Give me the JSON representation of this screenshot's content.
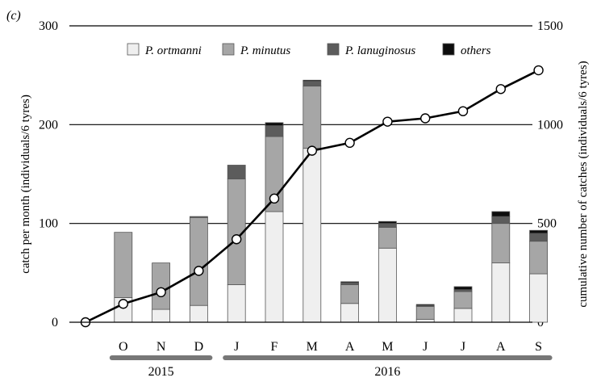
{
  "chart_data": {
    "type": "bar",
    "panel_label": "(c)",
    "categories": [
      "O",
      "N",
      "D",
      "J",
      "F",
      "M",
      "A",
      "M",
      "J",
      "J",
      "A",
      "S"
    ],
    "stack_series": [
      {
        "name": "P. ortmanni",
        "color": "#efefef",
        "values": [
          25,
          13,
          17,
          38,
          112,
          176,
          19,
          75,
          3,
          14,
          60,
          49
        ]
      },
      {
        "name": "P. minutus",
        "color": "#a6a6a6",
        "values": [
          66,
          47,
          89,
          107,
          76,
          63,
          19,
          21,
          13,
          17,
          40,
          33
        ]
      },
      {
        "name": "P. lanuginosus",
        "color": "#5c5c5c",
        "values": [
          0,
          0,
          1,
          14,
          11,
          5,
          2,
          4,
          1,
          2,
          7,
          8
        ]
      },
      {
        "name": "others",
        "color": "#0d0d0d",
        "values": [
          0,
          0,
          0,
          0,
          3,
          1,
          1,
          2,
          1,
          3,
          5,
          3
        ]
      }
    ],
    "cumulative_line": {
      "x_index": [
        -1,
        0,
        1,
        2,
        3,
        4,
        5,
        6,
        7,
        8,
        9,
        10,
        11
      ],
      "values": [
        0,
        93,
        152,
        260,
        420,
        626,
        868,
        908,
        1015,
        1032,
        1068,
        1180,
        1275
      ]
    },
    "ylabel_left": "catch per month (individuals/6 tyres)",
    "ylabel_right": "cumulative number of catches (individuals/6 tyres)",
    "ylim_left": [
      0,
      300
    ],
    "ylim_right": [
      0,
      1500
    ],
    "yticks_left": [
      "0",
      "100",
      "200",
      "300"
    ],
    "yticks_right": [
      "0",
      "500",
      "1000",
      "1500"
    ],
    "year_groups": [
      {
        "label": "2015",
        "start_index": 0,
        "end_index": 2
      },
      {
        "label": "2016",
        "start_index": 3,
        "end_index": 11
      }
    ],
    "grid": "horizontal",
    "legend_position": "top"
  }
}
